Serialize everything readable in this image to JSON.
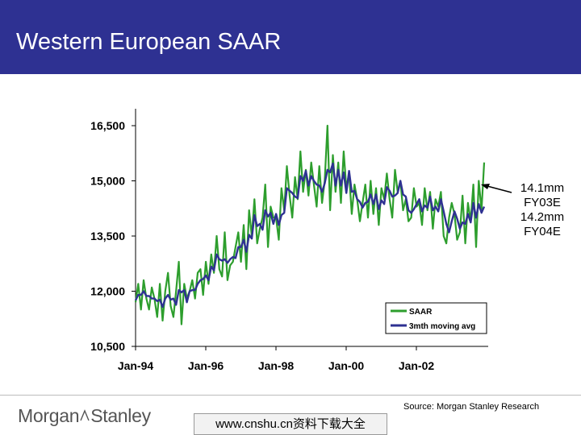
{
  "header": {
    "title": "Western European SAAR"
  },
  "annotation": {
    "lines": [
      "14.1mm",
      "FY03E",
      "14.2mm",
      "FY04E"
    ]
  },
  "footer": {
    "source": "Source: Morgan Stanley Research",
    "logo_left": "Morgan",
    "logo_right": "Stanley",
    "watermark": "www.cnshu.cn资料下载大全"
  },
  "colors": {
    "header_bg": "#2e3192",
    "saar": "#2d9e2d",
    "avg": "#2e3192"
  },
  "chart_data": {
    "type": "line",
    "title": "Western European SAAR",
    "xlabel": "",
    "ylabel": "",
    "ylim": [
      10500,
      17000
    ],
    "yticks": [
      10500,
      12000,
      13500,
      15000,
      16500
    ],
    "ytick_labels": [
      "10,500",
      "12,000",
      "13,500",
      "15,000",
      "16,500"
    ],
    "xticks": [
      "Jan-94",
      "Jan-96",
      "Jan-98",
      "Jan-00",
      "Jan-02"
    ],
    "x_start": "Jan-94",
    "legend": {
      "placement": "bottom-right",
      "entries": [
        "SAAR",
        "3mth moving avg"
      ]
    },
    "series": [
      {
        "name": "SAAR",
        "values": [
          11700,
          12200,
          11500,
          12300,
          11800,
          11500,
          12100,
          11800,
          11300,
          12200,
          11200,
          12000,
          12500,
          11600,
          11300,
          12000,
          12800,
          11100,
          12200,
          11800,
          12000,
          12300,
          11800,
          12500,
          12600,
          11900,
          12800,
          12200,
          13000,
          12500,
          13500,
          12600,
          12400,
          13600,
          12300,
          12700,
          12800,
          13200,
          13600,
          12800,
          13800,
          12600,
          14200,
          13500,
          14500,
          13300,
          13700,
          14000,
          14900,
          13200,
          14300,
          14000,
          14000,
          13400,
          14800,
          14200,
          15400,
          14600,
          14000,
          15100,
          14500,
          15800,
          14700,
          15300,
          14600,
          15500,
          14900,
          14300,
          15400,
          14400,
          15000,
          16500,
          14200,
          15700,
          14700,
          15500,
          14400,
          15800,
          14800,
          15200,
          14100,
          14900,
          14500,
          13900,
          14400,
          14900,
          14000,
          15000,
          14100,
          14800,
          13800,
          14800,
          14500,
          15200,
          14500,
          14000,
          15300,
          14700,
          15000,
          14200,
          14500,
          13900,
          14000,
          14800,
          14300,
          14400,
          13800,
          14800,
          14200,
          14700,
          13700,
          14500,
          14300,
          14700,
          13500,
          13300,
          14000,
          14400,
          14100,
          13400,
          13600,
          14600,
          13300,
          14400,
          13900,
          14900,
          13200,
          15000,
          14200,
          15500
        ]
      },
      {
        "name": "3mth moving avg",
        "values": [
          11750,
          11900,
          11900,
          12000,
          11870,
          11870,
          11800,
          11800,
          11730,
          11770,
          11570,
          11800,
          11900,
          11770,
          11800,
          11630,
          12030,
          11970,
          12030,
          11700,
          12000,
          12030,
          12030,
          12200,
          12300,
          12330,
          12430,
          12300,
          12670,
          12570,
          13000,
          12870,
          12830,
          12870,
          12770,
          12870,
          12930,
          12900,
          13200,
          13200,
          13400,
          13070,
          13530,
          13430,
          14070,
          13770,
          13830,
          13670,
          14200,
          14030,
          14130,
          13830,
          14100,
          13800,
          14070,
          14130,
          14800,
          14730,
          14670,
          14570,
          14530,
          15130,
          15000,
          15270,
          14870,
          15130,
          15000,
          14900,
          14870,
          14700,
          14930,
          15300,
          15230,
          15470,
          14870,
          15300,
          14870,
          15230,
          14670,
          15270,
          14700,
          14730,
          14500,
          14430,
          14270,
          14400,
          14430,
          14630,
          14370,
          14630,
          14230,
          14470,
          14370,
          14830,
          14730,
          14570,
          14600,
          14670,
          15000,
          14630,
          14570,
          14200,
          14130,
          14230,
          14370,
          14500,
          14170,
          14330,
          14270,
          14570,
          14200,
          14300,
          14170,
          14500,
          14170,
          13830,
          13600,
          13900,
          14170,
          13970,
          13700,
          13870,
          13830,
          14100,
          13870,
          14400,
          14000,
          14370,
          14130,
          14300
        ]
      }
    ]
  }
}
